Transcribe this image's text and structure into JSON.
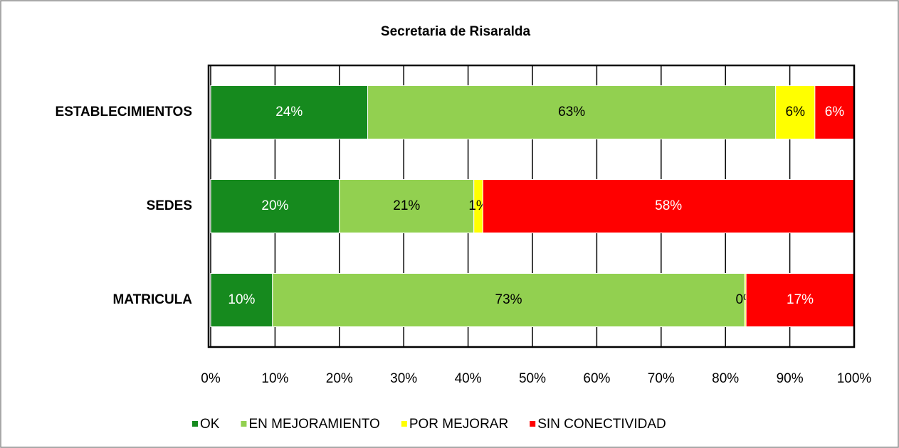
{
  "chart_data": {
    "type": "stacked-bar-horizontal",
    "title": "Secretaria de Risaralda",
    "categories": [
      "ESTABLECIMIENTOS",
      "SEDES",
      "MATRICULA"
    ],
    "series": [
      {
        "name": "OK",
        "color": "#168a1e",
        "label_color": "#ffffff",
        "values": [
          24.4,
          20.0,
          9.6
        ],
        "value_labels": [
          "24%",
          "20%",
          "10%"
        ]
      },
      {
        "name": "EN MEJORAMIENTO",
        "color": "#92d050",
        "label_color": "#000000",
        "values": [
          63.4,
          20.9,
          73.4
        ],
        "value_labels": [
          "63%",
          "21%",
          "73%"
        ]
      },
      {
        "name": "POR MEJORAR",
        "color": "#ffff00",
        "label_color": "#000000",
        "values": [
          6.1,
          1.4,
          0.2
        ],
        "value_labels": [
          "6%",
          "1%",
          "0%"
        ]
      },
      {
        "name": "SIN CONECTIVIDAD",
        "color": "#ff0000",
        "label_color": "#ffffff",
        "values": [
          6.1,
          57.7,
          16.8
        ],
        "value_labels": [
          "6%",
          "58%",
          "17%"
        ]
      }
    ],
    "xlim": [
      0,
      100
    ],
    "xticks": [
      {
        "value": 0,
        "label": "0%"
      },
      {
        "value": 10,
        "label": "10%"
      },
      {
        "value": 20,
        "label": "20%"
      },
      {
        "value": 30,
        "label": "30%"
      },
      {
        "value": 40,
        "label": "40%"
      },
      {
        "value": 50,
        "label": "50%"
      },
      {
        "value": 60,
        "label": "60%"
      },
      {
        "value": 70,
        "label": "70%"
      },
      {
        "value": 80,
        "label": "80%"
      },
      {
        "value": 90,
        "label": "90%"
      },
      {
        "value": 100,
        "label": "100%"
      }
    ],
    "grid": true,
    "legend": "bottom"
  }
}
